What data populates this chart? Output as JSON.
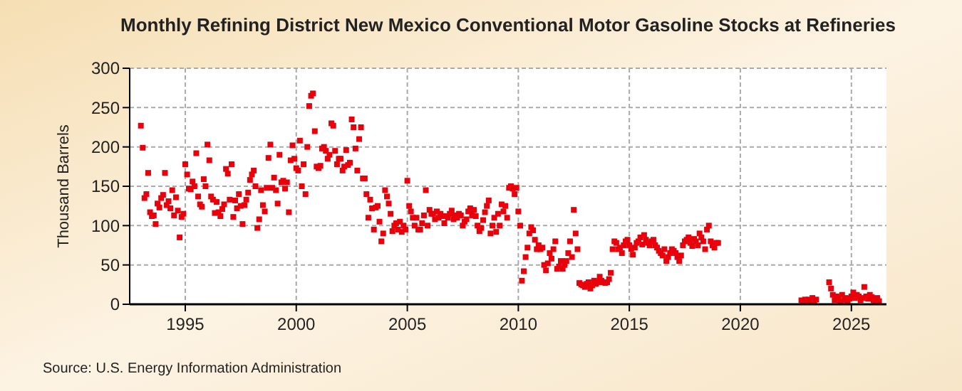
{
  "chart_data": {
    "type": "scatter",
    "title": "Monthly Refining District New Mexico Conventional Motor Gasoline Stocks at Refineries",
    "ylabel": "Thousand Barrels",
    "annotations": [
      "Source: U.S. Energy Information Administration"
    ],
    "marker": "square",
    "grid": true,
    "xlim": [
      "1992-07",
      "2026-08"
    ],
    "xticks": [
      "1995",
      "2000",
      "2005",
      "2010",
      "2015",
      "2020",
      "2025"
    ],
    "ylim": [
      0,
      300
    ],
    "yticks": [
      0,
      50,
      100,
      150,
      200,
      250,
      300
    ],
    "series": [
      {
        "color": "#e8000b",
        "x": [
          "1993-01",
          "1993-02",
          "1993-03",
          "1993-04",
          "1993-05",
          "1993-06",
          "1993-07",
          "1993-08",
          "1993-09",
          "1993-10",
          "1993-11",
          "1993-12",
          "1994-01",
          "1994-02",
          "1994-03",
          "1994-04",
          "1994-05",
          "1994-06",
          "1994-07",
          "1994-08",
          "1994-09",
          "1994-10",
          "1994-11",
          "1994-12",
          "1995-01",
          "1995-02",
          "1995-03",
          "1995-04",
          "1995-05",
          "1995-06",
          "1995-07",
          "1995-08",
          "1995-09",
          "1995-10",
          "1995-11",
          "1995-12",
          "1996-01",
          "1996-02",
          "1996-03",
          "1996-04",
          "1996-05",
          "1996-06",
          "1996-07",
          "1996-08",
          "1996-09",
          "1996-10",
          "1996-11",
          "1996-12",
          "1997-01",
          "1997-02",
          "1997-03",
          "1997-04",
          "1997-05",
          "1997-06",
          "1997-07",
          "1997-08",
          "1997-09",
          "1997-10",
          "1997-11",
          "1997-12",
          "1998-01",
          "1998-02",
          "1998-03",
          "1998-04",
          "1998-05",
          "1998-06",
          "1998-07",
          "1998-08",
          "1998-09",
          "1998-10",
          "1998-11",
          "1998-12",
          "1999-01",
          "1999-02",
          "1999-03",
          "1999-04",
          "1999-05",
          "1999-06",
          "1999-07",
          "1999-08",
          "1999-09",
          "1999-10",
          "1999-11",
          "1999-12",
          "2000-01",
          "2000-02",
          "2000-03",
          "2000-04",
          "2000-05",
          "2000-06",
          "2000-07",
          "2000-08",
          "2000-09",
          "2000-10",
          "2000-11",
          "2000-12",
          "2001-01",
          "2001-02",
          "2001-03",
          "2001-04",
          "2001-05",
          "2001-06",
          "2001-07",
          "2001-08",
          "2001-09",
          "2001-10",
          "2001-11",
          "2001-12",
          "2002-01",
          "2002-02",
          "2002-03",
          "2002-04",
          "2002-05",
          "2002-06",
          "2002-07",
          "2002-08",
          "2002-09",
          "2002-10",
          "2002-11",
          "2002-12",
          "2003-01",
          "2003-02",
          "2003-03",
          "2003-04",
          "2003-05",
          "2003-06",
          "2003-07",
          "2003-08",
          "2003-09",
          "2003-10",
          "2003-11",
          "2003-12",
          "2004-01",
          "2004-02",
          "2004-03",
          "2004-04",
          "2004-05",
          "2004-06",
          "2004-07",
          "2004-08",
          "2004-09",
          "2004-10",
          "2004-11",
          "2004-12",
          "2005-01",
          "2005-02",
          "2005-03",
          "2005-04",
          "2005-05",
          "2005-06",
          "2005-07",
          "2005-08",
          "2005-09",
          "2005-10",
          "2005-11",
          "2005-12",
          "2006-01",
          "2006-02",
          "2006-03",
          "2006-04",
          "2006-05",
          "2006-06",
          "2006-07",
          "2006-08",
          "2006-09",
          "2006-10",
          "2006-11",
          "2006-12",
          "2007-01",
          "2007-02",
          "2007-03",
          "2007-04",
          "2007-05",
          "2007-06",
          "2007-07",
          "2007-08",
          "2007-09",
          "2007-10",
          "2007-11",
          "2007-12",
          "2008-01",
          "2008-02",
          "2008-03",
          "2008-04",
          "2008-05",
          "2008-06",
          "2008-07",
          "2008-08",
          "2008-09",
          "2008-10",
          "2008-11",
          "2008-12",
          "2009-01",
          "2009-02",
          "2009-03",
          "2009-04",
          "2009-05",
          "2009-06",
          "2009-07",
          "2009-08",
          "2009-09",
          "2009-10",
          "2009-11",
          "2009-12",
          "2010-01",
          "2010-02",
          "2010-03",
          "2010-04",
          "2010-05",
          "2010-06",
          "2010-07",
          "2010-08",
          "2010-09",
          "2010-10",
          "2010-11",
          "2010-12",
          "2011-01",
          "2011-02",
          "2011-03",
          "2011-04",
          "2011-05",
          "2011-06",
          "2011-07",
          "2011-08",
          "2011-09",
          "2011-10",
          "2011-11",
          "2011-12",
          "2012-01",
          "2012-02",
          "2012-03",
          "2012-04",
          "2012-05",
          "2012-06",
          "2012-07",
          "2012-08",
          "2012-09",
          "2012-10",
          "2012-11",
          "2012-12",
          "2013-01",
          "2013-02",
          "2013-03",
          "2013-04",
          "2013-05",
          "2013-06",
          "2013-07",
          "2013-08",
          "2013-09",
          "2013-10",
          "2013-11",
          "2013-12",
          "2014-01",
          "2014-02",
          "2014-03",
          "2014-04",
          "2014-05",
          "2014-06",
          "2014-07",
          "2014-08",
          "2014-09",
          "2014-10",
          "2014-11",
          "2014-12",
          "2015-01",
          "2015-02",
          "2015-03",
          "2015-04",
          "2015-05",
          "2015-06",
          "2015-07",
          "2015-08",
          "2015-09",
          "2015-10",
          "2015-11",
          "2015-12",
          "2016-01",
          "2016-02",
          "2016-03",
          "2016-04",
          "2016-05",
          "2016-06",
          "2016-07",
          "2016-08",
          "2016-09",
          "2016-10",
          "2016-11",
          "2016-12",
          "2017-01",
          "2017-02",
          "2017-03",
          "2017-04",
          "2017-05",
          "2017-06",
          "2017-07",
          "2017-08",
          "2017-09",
          "2017-10",
          "2017-11",
          "2017-12",
          "2018-01",
          "2018-02",
          "2018-03",
          "2018-04",
          "2018-05",
          "2018-06",
          "2018-07",
          "2018-08",
          "2018-09",
          "2018-10",
          "2018-11",
          "2018-12",
          "2019-01",
          "2022-10",
          "2022-11",
          "2022-12",
          "2023-01",
          "2023-02",
          "2023-03",
          "2023-04",
          "2023-05",
          "2023-06",
          "2024-01",
          "2024-02",
          "2024-03",
          "2024-04",
          "2024-05",
          "2024-06",
          "2024-07",
          "2024-08",
          "2024-09",
          "2024-10",
          "2024-11",
          "2024-12",
          "2025-01",
          "2025-02",
          "2025-03",
          "2025-04",
          "2025-05",
          "2025-06",
          "2025-07",
          "2025-08",
          "2025-09",
          "2025-10",
          "2025-11",
          "2025-12",
          "2026-01",
          "2026-02",
          "2026-03",
          "2026-04"
        ],
        "values": [
          227,
          199,
          135,
          140,
          167,
          117,
          112,
          113,
          102,
          128,
          123,
          135,
          139,
          167,
          126,
          131,
          122,
          145,
          113,
          136,
          119,
          85,
          111,
          115,
          178,
          165,
          147,
          146,
          156,
          150,
          192,
          137,
          127,
          124,
          159,
          150,
          203,
          183,
          137,
          133,
          116,
          130,
          117,
          112,
          121,
          127,
          172,
          166,
          133,
          178,
          111,
          132,
          122,
          140,
          125,
          102,
          126,
          133,
          142,
          158,
          165,
          170,
          150,
          97,
          108,
          145,
          126,
          118,
          148,
          186,
          203,
          148,
          161,
          145,
          128,
          190,
          155,
          157,
          147,
          155,
          117,
          183,
          202,
          185,
          173,
          170,
          208,
          150,
          178,
          140,
          200,
          252,
          265,
          268,
          220,
          175,
          173,
          176,
          198,
          200,
          195,
          185,
          190,
          230,
          227,
          195,
          178,
          185,
          185,
          170,
          175,
          196,
          177,
          180,
          235,
          225,
          198,
          170,
          210,
          225,
          160,
          160,
          140,
          110,
          133,
          122,
          95,
          123,
          125,
          105,
          80,
          90,
          145,
          137,
          128,
          115,
          93,
          100,
          103,
          95,
          105,
          92,
          100,
          95,
          157,
          125,
          118,
          110,
          100,
          110,
          95,
          95,
          103,
          113,
          145,
          100,
          120,
          115,
          115,
          108,
          118,
          110,
          115,
          112,
          103,
          112,
          110,
          115,
          119,
          108,
          113,
          110,
          115,
          113,
          100,
          105,
          108,
          118,
          122,
          113,
          120,
          112,
          100,
          93,
          97,
          107,
          117,
          125,
          132,
          90,
          100,
          110,
          92,
          115,
          100,
          127,
          118,
          125,
          110,
          148,
          150,
          147,
          140,
          148,
          118,
          100,
          30,
          42,
          60,
          72,
          90,
          98,
          94,
          82,
          70,
          75,
          70,
          72,
          50,
          43,
          52,
          65,
          58,
          70,
          80,
          45,
          48,
          55,
          45,
          50,
          55,
          65,
          80,
          60,
          120,
          90,
          70,
          27,
          25,
          24,
          22,
          26,
          28,
          20,
          24,
          30,
          26,
          28,
          35,
          30,
          28,
          27,
          28,
          32,
          40,
          70,
          80,
          78,
          70,
          72,
          65,
          75,
          80,
          82,
          75,
          70,
          63,
          72,
          78,
          80,
          85,
          76,
          88,
          82,
          78,
          75,
          80,
          82,
          75,
          72,
          68,
          65,
          62,
          70,
          55,
          60,
          65,
          70,
          68,
          65,
          60,
          55,
          62,
          75,
          80,
          82,
          85,
          78,
          74,
          83,
          80,
          75,
          90,
          85,
          80,
          70,
          95,
          100,
          80,
          75,
          72,
          78,
          78,
          5,
          3,
          6,
          4,
          6,
          3,
          8,
          4,
          6,
          28,
          20,
          12,
          5,
          10,
          8,
          3,
          12,
          5,
          8,
          4,
          7,
          10,
          15,
          8,
          12,
          10,
          5,
          8,
          22,
          10,
          7,
          12,
          9,
          5,
          3,
          8,
          4
        ]
      }
    ]
  }
}
